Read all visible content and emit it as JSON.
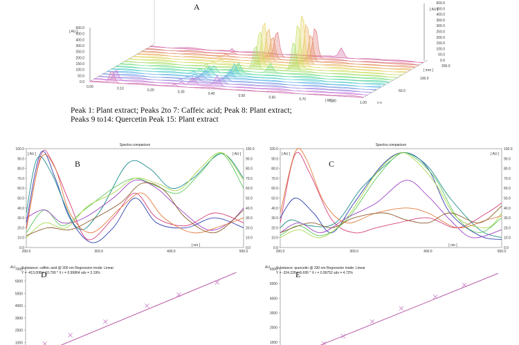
{
  "caption": {
    "line1": "Peak 1: Plant extract; Peaks 2to 7: Caffeic acid; Peak 8: Plant extract;",
    "line2": "Peaks 9 to14: Quercetin Peak 15: Plant extract"
  },
  "chart_data": [
    {
      "panel": "A",
      "type": "area",
      "label": "A",
      "left_axis_unit": "[ AU ]",
      "right_axis_unit": "[ AU ]",
      "depth_axis_unit": "[ mm ]",
      "x_axis_unit": "[ Rf ]",
      "left_ticks": [
        "600.0",
        "500.0",
        "400.0",
        "300.0",
        "250.0",
        "200.0",
        "150.0",
        "100.0",
        "50.0",
        "0.0"
      ],
      "right_ticks": [
        "600.0",
        "450.0",
        "400.0",
        "350.0",
        "300.0",
        "250.0",
        "200.0",
        "150.0",
        "100.0",
        "50.0",
        "0.0"
      ],
      "x_ticks": [
        "0.00",
        "0.10",
        "0.20",
        "0.30",
        "0.40",
        "0.50",
        "0.60",
        "0.70",
        "0.80",
        "1.00"
      ],
      "depth_ticks": [
        "200.0",
        "100.0",
        "50.0",
        "0.0"
      ],
      "tracks": 15,
      "peaks": [
        {
          "rf": 0.08,
          "height": 60,
          "tracks": [
            1,
            2
          ]
        },
        {
          "rf": 0.36,
          "height": 40,
          "tracks": [
            2,
            7
          ]
        },
        {
          "rf": 0.45,
          "height": 55,
          "tracks": [
            2,
            7
          ]
        },
        {
          "rf": 0.48,
          "height": 210,
          "tracks": [
            9,
            14
          ]
        },
        {
          "rf": 0.55,
          "height": 80,
          "tracks": [
            8,
            8
          ]
        },
        {
          "rf": 0.62,
          "height": 260,
          "tracks": [
            9,
            14
          ]
        },
        {
          "rf": 0.7,
          "height": 50,
          "tracks": [
            15,
            15
          ]
        }
      ]
    },
    {
      "panel": "B",
      "type": "line",
      "title": "Spectra comparison",
      "label": "B",
      "x_unit": "[ nm ]",
      "left_unit": "[ AU ]",
      "right_unit": "[ AU ]",
      "x_ticks": [
        "200.0",
        "300.0",
        "400.0",
        "500.0"
      ],
      "y_ticks": [
        "100.0",
        "90.0",
        "80.0",
        "70.0",
        "60.0",
        "50.0",
        "40.0",
        "30.0",
        "20.0",
        "10.0",
        "0.0"
      ],
      "xlim": [
        200,
        500
      ],
      "ylim": [
        0,
        100
      ],
      "series": [
        {
          "color": "#d63c7a",
          "values": [
            [
              200,
              20
            ],
            [
              220,
              93
            ],
            [
              235,
              88
            ],
            [
              260,
              45
            ],
            [
              285,
              8
            ],
            [
              320,
              30
            ],
            [
              350,
              55
            ],
            [
              380,
              30
            ],
            [
              420,
              22
            ],
            [
              460,
              35
            ],
            [
              500,
              25
            ]
          ]
        },
        {
          "color": "#2e3fb0",
          "values": [
            [
              200,
              25
            ],
            [
              220,
              96
            ],
            [
              240,
              70
            ],
            [
              260,
              30
            ],
            [
              290,
              5
            ],
            [
              320,
              20
            ],
            [
              350,
              50
            ],
            [
              380,
              25
            ],
            [
              420,
              20
            ],
            [
              460,
              30
            ],
            [
              500,
              20
            ]
          ]
        },
        {
          "color": "#1a8a8a",
          "values": [
            [
              200,
              35
            ],
            [
              215,
              90
            ],
            [
              235,
              75
            ],
            [
              270,
              20
            ],
            [
              300,
              35
            ],
            [
              340,
              85
            ],
            [
              370,
              80
            ],
            [
              400,
              60
            ],
            [
              430,
              70
            ],
            [
              470,
              95
            ],
            [
              500,
              70
            ]
          ]
        },
        {
          "color": "#5cc85c",
          "values": [
            [
              200,
              15
            ],
            [
              225,
              38
            ],
            [
              250,
              22
            ],
            [
              280,
              38
            ],
            [
              320,
              60
            ],
            [
              350,
              70
            ],
            [
              380,
              62
            ],
            [
              410,
              55
            ],
            [
              440,
              75
            ],
            [
              470,
              95
            ],
            [
              500,
              60
            ]
          ]
        },
        {
          "color": "#a7d64a",
          "values": [
            [
              200,
              10
            ],
            [
              225,
              25
            ],
            [
              255,
              20
            ],
            [
              285,
              42
            ],
            [
              320,
              55
            ],
            [
              350,
              70
            ],
            [
              380,
              65
            ],
            [
              410,
              58
            ],
            [
              440,
              80
            ],
            [
              470,
              96
            ],
            [
              500,
              68
            ]
          ]
        },
        {
          "color": "#9b3fc4",
          "values": [
            [
              200,
              30
            ],
            [
              225,
              38
            ],
            [
              250,
              25
            ],
            [
              280,
              30
            ],
            [
              320,
              50
            ],
            [
              350,
              68
            ],
            [
              380,
              60
            ],
            [
              410,
              40
            ],
            [
              450,
              18
            ],
            [
              480,
              25
            ],
            [
              500,
              40
            ]
          ]
        },
        {
          "color": "#e07a3a",
          "values": [
            [
              200,
              18
            ],
            [
              220,
              90
            ],
            [
              240,
              80
            ],
            [
              260,
              35
            ],
            [
              290,
              15
            ],
            [
              330,
              40
            ],
            [
              360,
              55
            ],
            [
              390,
              30
            ],
            [
              430,
              15
            ],
            [
              470,
              22
            ],
            [
              500,
              30
            ]
          ]
        },
        {
          "color": "#8b5a2b",
          "values": [
            [
              200,
              12
            ],
            [
              230,
              20
            ],
            [
              260,
              18
            ],
            [
              290,
              28
            ],
            [
              330,
              45
            ],
            [
              360,
              65
            ],
            [
              390,
              58
            ],
            [
              420,
              30
            ],
            [
              460,
              15
            ],
            [
              500,
              38
            ]
          ]
        }
      ]
    },
    {
      "panel": "C",
      "type": "line",
      "title": "Spectra comparison",
      "label": "C",
      "x_unit": "[ nm ]",
      "left_unit": "[ AU ]",
      "right_unit": "[ AU ]",
      "x_ticks": [
        "200.0",
        "300.0",
        "400.0",
        "500.0"
      ],
      "y_ticks": [
        "100.0",
        "90.0",
        "80.0",
        "70.0",
        "60.0",
        "50.0",
        "40.0",
        "30.0",
        "20.0",
        "10.0",
        "0.0"
      ],
      "xlim": [
        200,
        500
      ],
      "ylim": [
        0,
        100
      ],
      "series": [
        {
          "color": "#d63c7a",
          "values": [
            [
              200,
              25
            ],
            [
              220,
              94
            ],
            [
              240,
              75
            ],
            [
              270,
              28
            ],
            [
              300,
              15
            ],
            [
              330,
              20
            ],
            [
              360,
              25
            ],
            [
              400,
              30
            ],
            [
              440,
              20
            ],
            [
              480,
              35
            ],
            [
              500,
              45
            ]
          ]
        },
        {
          "color": "#2e3fb0",
          "values": [
            [
              200,
              30
            ],
            [
              220,
              50
            ],
            [
              245,
              35
            ],
            [
              270,
              15
            ],
            [
              300,
              45
            ],
            [
              340,
              85
            ],
            [
              370,
              96
            ],
            [
              400,
              80
            ],
            [
              430,
              35
            ],
            [
              470,
              12
            ],
            [
              500,
              8
            ]
          ]
        },
        {
          "color": "#1a8a8a",
          "values": [
            [
              200,
              20
            ],
            [
              215,
              28
            ],
            [
              240,
              22
            ],
            [
              275,
              25
            ],
            [
              310,
              60
            ],
            [
              350,
              88
            ],
            [
              370,
              96
            ],
            [
              400,
              82
            ],
            [
              430,
              50
            ],
            [
              470,
              18
            ],
            [
              500,
              10
            ]
          ]
        },
        {
          "color": "#5cc85c",
          "values": [
            [
              200,
              12
            ],
            [
              225,
              22
            ],
            [
              255,
              12
            ],
            [
              290,
              28
            ],
            [
              330,
              70
            ],
            [
              360,
              94
            ],
            [
              380,
              92
            ],
            [
              410,
              70
            ],
            [
              440,
              30
            ],
            [
              470,
              15
            ],
            [
              500,
              30
            ]
          ]
        },
        {
          "color": "#a7d64a",
          "values": [
            [
              200,
              10
            ],
            [
              225,
              18
            ],
            [
              255,
              10
            ],
            [
              290,
              30
            ],
            [
              330,
              75
            ],
            [
              360,
              95
            ],
            [
              380,
              90
            ],
            [
              410,
              65
            ],
            [
              440,
              30
            ],
            [
              480,
              20
            ],
            [
              500,
              35
            ]
          ]
        },
        {
          "color": "#9b3fc4",
          "values": [
            [
              200,
              15
            ],
            [
              225,
              25
            ],
            [
              255,
              15
            ],
            [
              290,
              30
            ],
            [
              330,
              45
            ],
            [
              370,
              68
            ],
            [
              400,
              52
            ],
            [
              430,
              28
            ],
            [
              460,
              10
            ],
            [
              500,
              18
            ]
          ]
        },
        {
          "color": "#e07a3a",
          "values": [
            [
              200,
              35
            ],
            [
              220,
              96
            ],
            [
              235,
              90
            ],
            [
              260,
              45
            ],
            [
              290,
              25
            ],
            [
              330,
              35
            ],
            [
              370,
              40
            ],
            [
              400,
              35
            ],
            [
              440,
              20
            ],
            [
              480,
              28
            ],
            [
              500,
              32
            ]
          ]
        },
        {
          "color": "#8b5a2b",
          "values": [
            [
              200,
              15
            ],
            [
              240,
              25
            ],
            [
              270,
              20
            ],
            [
              300,
              30
            ],
            [
              340,
              35
            ],
            [
              370,
              28
            ],
            [
              400,
              25
            ],
            [
              430,
              35
            ],
            [
              470,
              25
            ],
            [
              500,
              42
            ]
          ]
        }
      ]
    },
    {
      "panel": "D",
      "type": "scatter",
      "label": "D",
      "header": "Substance: caffeic acid @ 300 nm        Regression mode:    Linear",
      "equation": "Y = -413.008 + 10.799 * X    r = 0.99864    sdv = 3.19%",
      "ylabel": "AU",
      "y_ticks": [
        "7000",
        "6000",
        "5000",
        "4000",
        "3000",
        "2000",
        "1000"
      ],
      "ylim": [
        800,
        7000
      ],
      "line_color": "#b0479b",
      "points": [
        [
          60,
          900
        ],
        [
          140,
          1600
        ],
        [
          250,
          2700
        ],
        [
          380,
          4000
        ],
        [
          480,
          4900
        ],
        [
          600,
          5900
        ]
      ],
      "fit": [
        [
          0,
          -413
        ],
        [
          660,
          6715
        ]
      ]
    },
    {
      "panel": "E",
      "type": "scatter",
      "label": "E",
      "header": "Substance: quercetin @ 330 nm        Regression mode:    Linear",
      "equation": "Y = -324.226 + 6.695 * X    r = 0.99752    sdv = 4.72%",
      "ylabel": "AU",
      "y_ticks": [
        "6000",
        "5000",
        "4000",
        "3000",
        "2000",
        "1000"
      ],
      "ylim": [
        800,
        6000
      ],
      "line_color": "#b0479b",
      "points": [
        [
          180,
          900
        ],
        [
          260,
          1400
        ],
        [
          380,
          2400
        ],
        [
          500,
          3300
        ],
        [
          640,
          4100
        ],
        [
          760,
          4900
        ]
      ],
      "fit": [
        [
          0,
          -324
        ],
        [
          900,
          5701
        ]
      ]
    }
  ]
}
